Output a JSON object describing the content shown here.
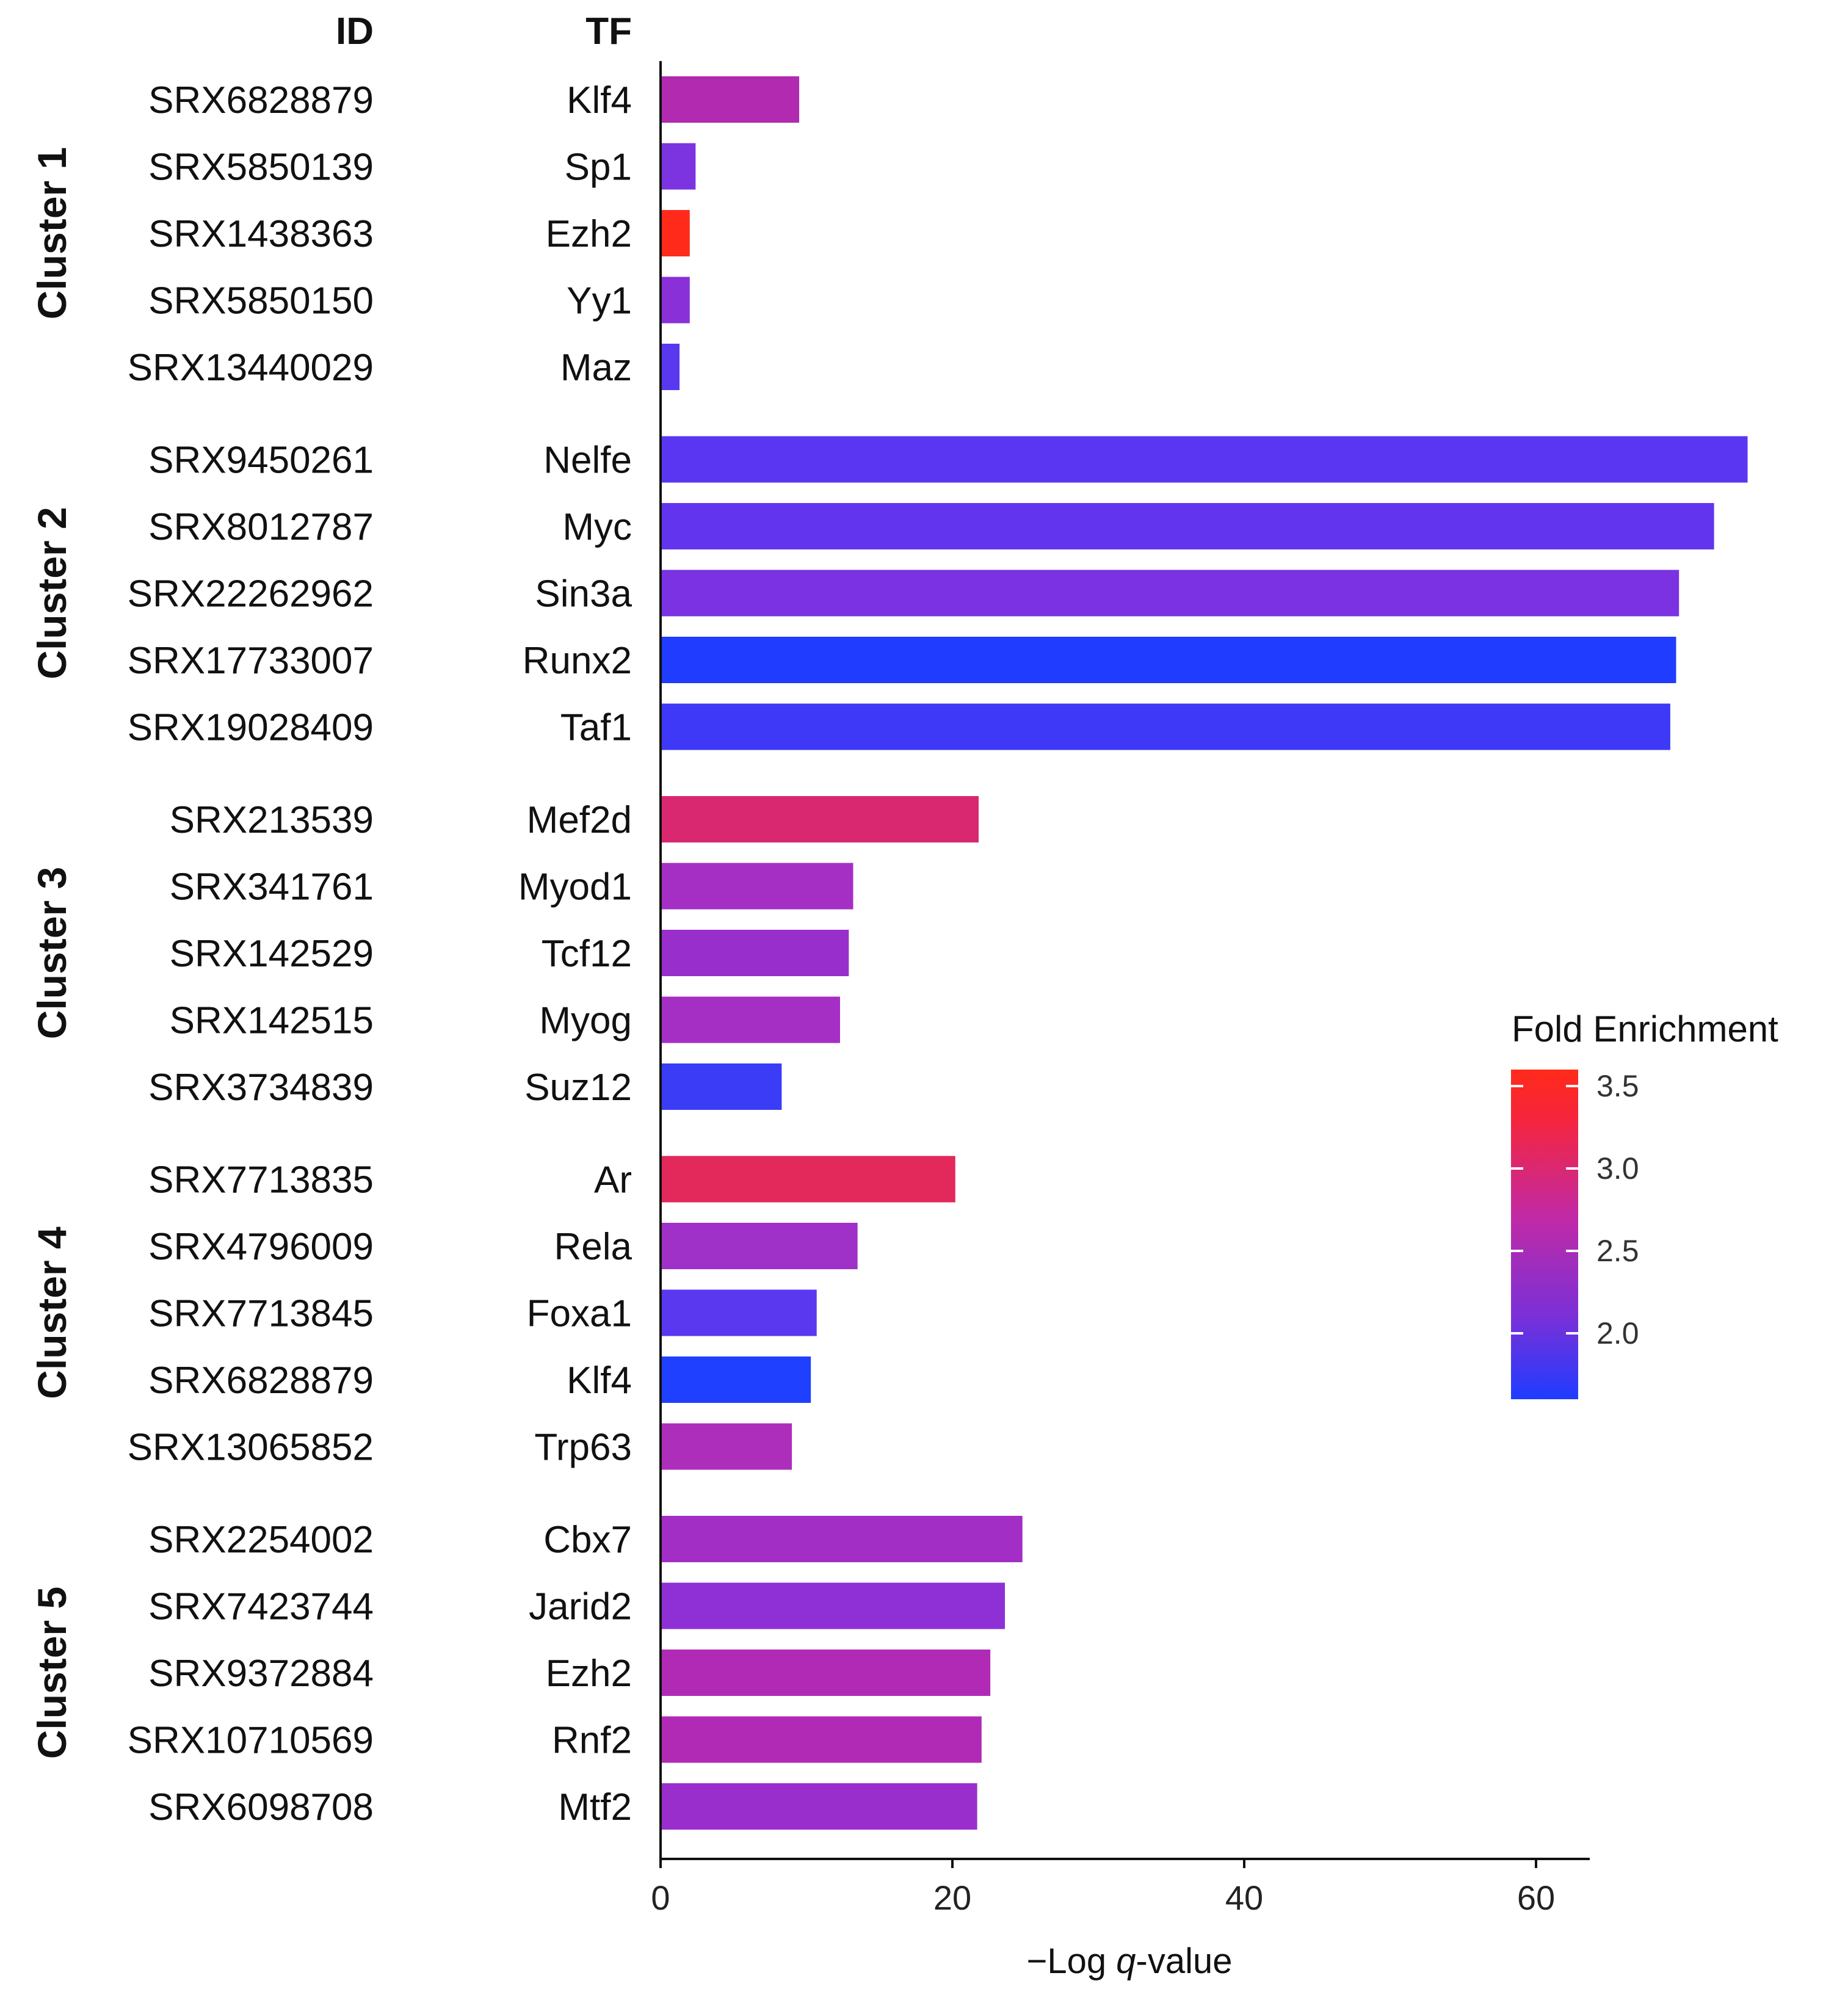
{
  "chart_data": {
    "type": "bar",
    "orientation": "horizontal",
    "column_headers": {
      "id": "ID",
      "tf": "TF"
    },
    "xlabel_parts": [
      "−Log ",
      "q",
      "-value"
    ],
    "xlim": [
      0,
      64
    ],
    "xticks": [
      0,
      20,
      40,
      60
    ],
    "legend": {
      "title": "Fold Enrichment",
      "range": [
        1.6,
        3.6
      ],
      "ticks": [
        "3.5",
        "3.0",
        "2.5",
        "2.0"
      ],
      "tick_values": [
        3.5,
        3.0,
        2.5,
        2.0
      ],
      "colors": [
        "#1f3cff",
        "#7a30d8",
        "#c02aa6",
        "#f5253c",
        "#ff2a1a"
      ],
      "placement": "right"
    },
    "clusters": [
      {
        "name": "Cluster 1",
        "rows": [
          {
            "id": "SRX6828879",
            "tf": "Klf4",
            "value": 9.5,
            "fold": 2.45,
            "color": "#b12ab0"
          },
          {
            "id": "SRX5850139",
            "tf": "Sp1",
            "value": 2.4,
            "fold": 1.9,
            "color": "#7b34e0"
          },
          {
            "id": "SRX1438363",
            "tf": "Ezh2",
            "value": 2.0,
            "fold": 3.6,
            "color": "#ff2a1a"
          },
          {
            "id": "SRX5850150",
            "tf": "Yy1",
            "value": 2.0,
            "fold": 1.95,
            "color": "#8a30d8"
          },
          {
            "id": "SRX13440029",
            "tf": "Maz",
            "value": 1.3,
            "fold": 1.75,
            "color": "#5a38f0"
          }
        ]
      },
      {
        "name": "Cluster 2",
        "rows": [
          {
            "id": "SRX9450261",
            "tf": "Nelfe",
            "value": 74.5,
            "fold": 1.8,
            "color": "#5b36f2"
          },
          {
            "id": "SRX8012787",
            "tf": "Myc",
            "value": 72.2,
            "fold": 1.82,
            "color": "#6234ee"
          },
          {
            "id": "SRX22262962",
            "tf": "Sin3a",
            "value": 69.8,
            "fold": 1.95,
            "color": "#7a32e2"
          },
          {
            "id": "SRX17733007",
            "tf": "Runx2",
            "value": 69.6,
            "fold": 1.6,
            "color": "#1f3cff"
          },
          {
            "id": "SRX19028409",
            "tf": "Taf1",
            "value": 69.2,
            "fold": 1.72,
            "color": "#3d39f6"
          }
        ]
      },
      {
        "name": "Cluster 3",
        "rows": [
          {
            "id": "SRX213539",
            "tf": "Mef2d",
            "value": 21.8,
            "fold": 3.0,
            "color": "#d92870"
          },
          {
            "id": "SRX341761",
            "tf": "Myod1",
            "value": 13.2,
            "fold": 2.3,
            "color": "#a52fc4"
          },
          {
            "id": "SRX142529",
            "tf": "Tcf12",
            "value": 12.9,
            "fold": 2.2,
            "color": "#982ecc"
          },
          {
            "id": "SRX142515",
            "tf": "Myog",
            "value": 12.3,
            "fold": 2.3,
            "color": "#a52fc4"
          },
          {
            "id": "SRX3734839",
            "tf": "Suz12",
            "value": 8.3,
            "fold": 1.7,
            "color": "#3a3cf6"
          }
        ]
      },
      {
        "name": "Cluster 4",
        "rows": [
          {
            "id": "SRX7713835",
            "tf": "Ar",
            "value": 20.2,
            "fold": 3.05,
            "color": "#e3285c"
          },
          {
            "id": "SRX4796009",
            "tf": "Rela",
            "value": 13.5,
            "fold": 2.25,
            "color": "#9f30c8"
          },
          {
            "id": "SRX7713845",
            "tf": "Foxa1",
            "value": 10.7,
            "fold": 1.8,
            "color": "#5a38f0"
          },
          {
            "id": "SRX6828879",
            "tf": "Klf4",
            "value": 10.3,
            "fold": 1.6,
            "color": "#1f40ff"
          },
          {
            "id": "SRX13065852",
            "tf": "Trp63",
            "value": 9.0,
            "fold": 2.35,
            "color": "#ad2eba"
          }
        ]
      },
      {
        "name": "Cluster 5",
        "rows": [
          {
            "id": "SRX2254002",
            "tf": "Cbx7",
            "value": 24.8,
            "fold": 2.25,
            "color": "#a22ec6"
          },
          {
            "id": "SRX7423744",
            "tf": "Jarid2",
            "value": 23.6,
            "fold": 2.1,
            "color": "#8e30d6"
          },
          {
            "id": "SRX9372884",
            "tf": "Ezh2",
            "value": 22.6,
            "fold": 2.4,
            "color": "#b02ab6"
          },
          {
            "id": "SRX10710569",
            "tf": "Rnf2",
            "value": 22.0,
            "fold": 2.4,
            "color": "#b02ab6"
          },
          {
            "id": "SRX6098708",
            "tf": "Mtf2",
            "value": 21.7,
            "fold": 2.2,
            "color": "#9a2ecc"
          }
        ]
      }
    ]
  }
}
